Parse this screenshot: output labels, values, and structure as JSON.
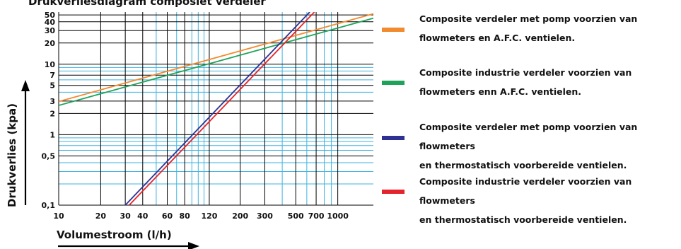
{
  "chart_data": {
    "type": "line",
    "title": "Drukverliesdiagram composiet verdeler",
    "xlabel": "Volumestroom (l/h)",
    "ylabel": "Drukverlies (kpa)",
    "x_scale": "log",
    "y_scale": "log",
    "xlim": [
      10,
      1800
    ],
    "ylim": [
      0.1,
      55
    ],
    "grid": true,
    "x_ticks": [
      {
        "value": 10,
        "label": "10"
      },
      {
        "value": 20,
        "label": "20"
      },
      {
        "value": 30,
        "label": "30"
      },
      {
        "value": 40,
        "label": "40"
      },
      {
        "value": 60,
        "label": "60"
      },
      {
        "value": 80,
        "label": "80"
      },
      {
        "value": 120,
        "label": "120"
      },
      {
        "value": 200,
        "label": "200"
      },
      {
        "value": 300,
        "label": "300"
      },
      {
        "value": 500,
        "label": "500"
      },
      {
        "value": 700,
        "label": "700"
      },
      {
        "value": 1000,
        "label": "1000"
      }
    ],
    "y_ticks": [
      {
        "value": 0.1,
        "label": "0,1"
      },
      {
        "value": 0.5,
        "label": "0,5"
      },
      {
        "value": 1,
        "label": "1"
      },
      {
        "value": 2,
        "label": "2"
      },
      {
        "value": 3,
        "label": "3"
      },
      {
        "value": 5,
        "label": "5"
      },
      {
        "value": 7,
        "label": "7"
      },
      {
        "value": 10,
        "label": "10"
      },
      {
        "value": 20,
        "label": "20"
      },
      {
        "value": 30,
        "label": "30"
      },
      {
        "value": 40,
        "label": "40"
      },
      {
        "value": 50,
        "label": "50"
      }
    ],
    "grid_x_black": [
      10,
      20,
      30,
      40,
      60,
      80,
      120,
      200,
      300,
      500,
      700,
      1000
    ],
    "grid_x_cyan": [
      50,
      70,
      90,
      100,
      110,
      400,
      600,
      800,
      900
    ],
    "grid_y_black": [
      0.1,
      0.5,
      1,
      2,
      3,
      5,
      7,
      10,
      20,
      30,
      40,
      50
    ],
    "grid_y_cyan": [
      0.2,
      0.3,
      0.4,
      0.6,
      0.7,
      0.8,
      0.9,
      4,
      6,
      8,
      9
    ],
    "series": [
      {
        "name": "Composite verdeler met pomp voorzien van\nflowmeters en A.F.C. ventielen.",
        "color": "#f28a2e",
        "points": [
          [
            10,
            2.95
          ],
          [
            1800,
            52
          ]
        ]
      },
      {
        "name": "Composite industrie verdeler voorzien van\nflowmeters enn A.F.C. ventielen.",
        "color": "#1fa35a",
        "points": [
          [
            10,
            2.6
          ],
          [
            1800,
            45
          ]
        ]
      },
      {
        "name": "Composite verdeler met pomp voorzien van flowmeters\nen thermostatisch voorbereide ventielen.",
        "color": "#2e3192",
        "points": [
          [
            30,
            0.1
          ],
          [
            630,
            55
          ]
        ]
      },
      {
        "name": "Composite industrie verdeler voorzien van flowmeters\nen thermostatisch voorbereide ventielen.",
        "color": "#e3242b",
        "points": [
          [
            32,
            0.1
          ],
          [
            680,
            55
          ]
        ]
      }
    ]
  }
}
